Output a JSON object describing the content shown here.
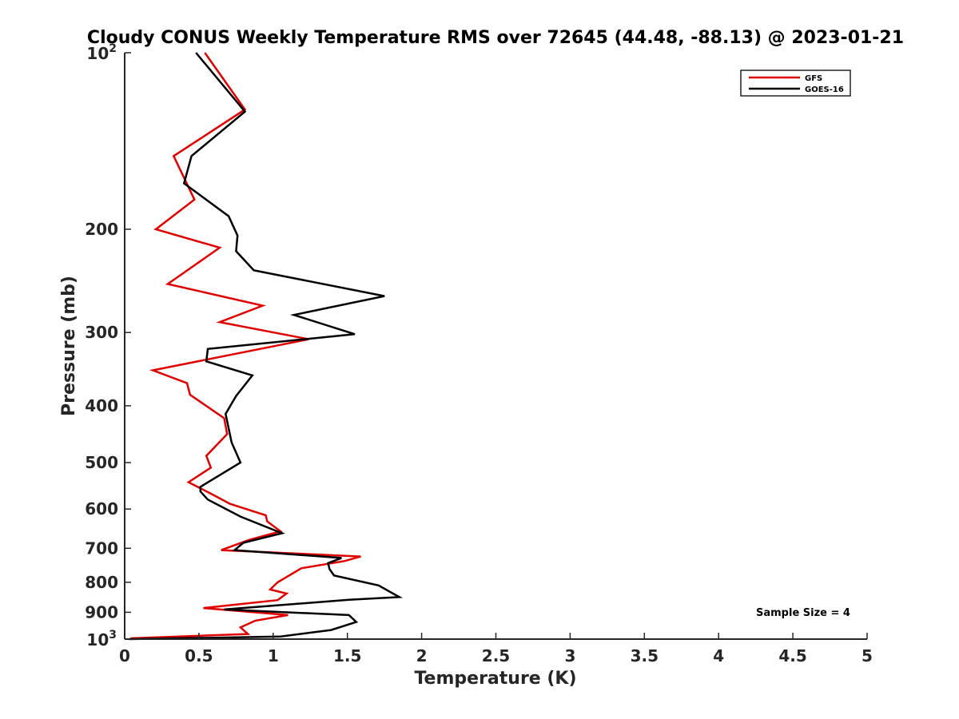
{
  "chart_data": {
    "type": "line",
    "title": "Cloudy CONUS Weekly Temperature RMS over 72645 (44.48, -88.13) @ 2023-01-21",
    "xlabel": "Temperature (K)",
    "ylabel": "Pressure (mb)",
    "xlim": [
      0,
      5
    ],
    "ylim": [
      100,
      1000
    ],
    "y_scale": "log",
    "y_reversed": true,
    "grid": false,
    "legend_position": "top-right",
    "x_ticks": [
      0,
      0.5,
      1,
      1.5,
      2,
      2.5,
      3,
      3.5,
      4,
      4.5,
      5
    ],
    "x_tick_labels": [
      "0",
      "0.5",
      "1",
      "1.5",
      "2",
      "2.5",
      "3",
      "3.5",
      "4",
      "4.5",
      "5"
    ],
    "y_ticks": [
      200,
      300,
      400,
      500,
      600,
      700,
      800,
      900
    ],
    "y_tick_labels": [
      "200",
      "300",
      "400",
      "500",
      "600",
      "700",
      "800",
      "900"
    ],
    "y_power_ticks": [
      {
        "value": 100,
        "base": "10",
        "exp": "2"
      },
      {
        "value": 1000,
        "base": "10",
        "exp": "3"
      }
    ],
    "series": [
      {
        "name": "GFS",
        "color": "#e00000",
        "points": [
          [
            0.54,
            100
          ],
          [
            0.81,
            125
          ],
          [
            0.33,
            150
          ],
          [
            0.47,
            178
          ],
          [
            0.21,
            200
          ],
          [
            0.64,
            215
          ],
          [
            0.29,
            248
          ],
          [
            0.93,
            270
          ],
          [
            0.64,
            288
          ],
          [
            1.24,
            308
          ],
          [
            0.19,
            348
          ],
          [
            0.42,
            366
          ],
          [
            0.44,
            383
          ],
          [
            0.67,
            420
          ],
          [
            0.69,
            447
          ],
          [
            0.55,
            487
          ],
          [
            0.58,
            510
          ],
          [
            0.43,
            540
          ],
          [
            0.57,
            563
          ],
          [
            0.71,
            588
          ],
          [
            0.95,
            615
          ],
          [
            0.96,
            630
          ],
          [
            1.05,
            655
          ],
          [
            0.84,
            677
          ],
          [
            0.65,
            705
          ],
          [
            1.59,
            723
          ],
          [
            1.48,
            736
          ],
          [
            1.19,
            757
          ],
          [
            1.03,
            800
          ],
          [
            0.98,
            823
          ],
          [
            1.09,
            836
          ],
          [
            1.03,
            858
          ],
          [
            0.53,
            885
          ],
          [
            1.1,
            910
          ],
          [
            0.88,
            930
          ],
          [
            0.78,
            955
          ],
          [
            0.83,
            980
          ],
          [
            0.04,
            997
          ]
        ]
      },
      {
        "name": "GOES-16",
        "color": "#000000",
        "points": [
          [
            0.48,
            100
          ],
          [
            0.81,
            126
          ],
          [
            0.45,
            150
          ],
          [
            0.4,
            167
          ],
          [
            0.7,
            190
          ],
          [
            0.76,
            205
          ],
          [
            0.75,
            218
          ],
          [
            0.87,
            235
          ],
          [
            1.75,
            260
          ],
          [
            1.14,
            280
          ],
          [
            1.55,
            302
          ],
          [
            0.56,
            320
          ],
          [
            0.55,
            336
          ],
          [
            0.86,
            355
          ],
          [
            0.75,
            385
          ],
          [
            0.68,
            413
          ],
          [
            0.72,
            462
          ],
          [
            0.78,
            500
          ],
          [
            0.51,
            550
          ],
          [
            0.51,
            560
          ],
          [
            0.56,
            578
          ],
          [
            0.78,
            618
          ],
          [
            1.06,
            660
          ],
          [
            0.8,
            685
          ],
          [
            0.74,
            705
          ],
          [
            1.46,
            727
          ],
          [
            1.37,
            742
          ],
          [
            1.38,
            760
          ],
          [
            1.41,
            779
          ],
          [
            1.71,
            810
          ],
          [
            1.85,
            848
          ],
          [
            1.51,
            857
          ],
          [
            0.67,
            890
          ],
          [
            1.51,
            910
          ],
          [
            1.56,
            935
          ],
          [
            1.39,
            965
          ],
          [
            1.05,
            990
          ],
          [
            0.03,
            1000
          ]
        ]
      }
    ],
    "annotations": [
      "Sample Size = 4"
    ]
  }
}
